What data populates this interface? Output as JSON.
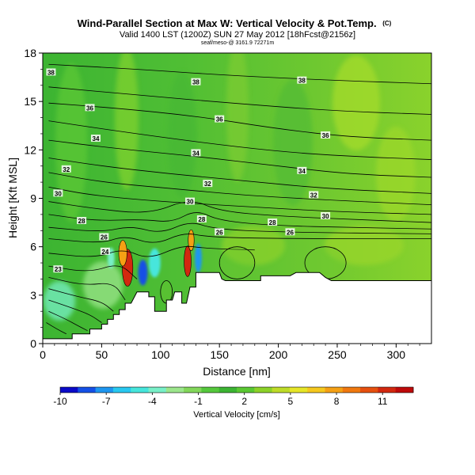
{
  "chart_data": {
    "type": "heatmap",
    "title": "Wind-Parallel Section at Max W: Vertical Velocity & Pot.Temp.",
    "title_mark": "(C)",
    "subtitle": "Valid 1400 LST (1200Z) SUN 27 May 2012 [18hFcst@2156z]",
    "subsubtitle": "seaf/meso-@ 3161.9 72271m",
    "xlabel": "Distance [nm]",
    "ylabel": "Height [Kft MSL]",
    "xlim": [
      0,
      330
    ],
    "ylim": [
      0,
      18
    ],
    "xticks": [
      0,
      50,
      100,
      150,
      200,
      250,
      300
    ],
    "yticks": [
      0,
      3,
      6,
      9,
      12,
      15,
      18
    ],
    "colorbar": {
      "label": "Vertical Velocity [cm/s]",
      "ticks": [
        -10,
        -7,
        -4,
        -1,
        2,
        5,
        8,
        11
      ],
      "range": [
        -10,
        13
      ],
      "colors": [
        "#0a0ac8",
        "#1450e6",
        "#1e96f0",
        "#28c8f0",
        "#46e6dc",
        "#78f0c8",
        "#9ce68c",
        "#82d75a",
        "#55c83c",
        "#3cb432",
        "#5ac832",
        "#8cd228",
        "#bedc28",
        "#e6e628",
        "#f5c81e",
        "#f5a014",
        "#f0780f",
        "#e6500f",
        "#d2280f",
        "#be0a0a"
      ]
    },
    "terrain": [
      [
        0,
        0.3
      ],
      [
        5,
        0.3
      ],
      [
        15,
        0.3
      ],
      [
        20,
        0.3
      ],
      [
        25,
        0.3
      ],
      [
        25,
        0.6
      ],
      [
        35,
        0.6
      ],
      [
        40,
        0.6
      ],
      [
        40,
        0.9
      ],
      [
        50,
        0.9
      ],
      [
        50,
        1.2
      ],
      [
        55,
        1.2
      ],
      [
        55,
        1.5
      ],
      [
        60,
        1.5
      ],
      [
        60,
        1.8
      ],
      [
        65,
        1.8
      ],
      [
        65,
        2.1
      ],
      [
        70,
        2.1
      ],
      [
        70,
        2.5
      ],
      [
        75,
        2.5
      ],
      [
        80,
        3.2
      ],
      [
        90,
        3.2
      ],
      [
        90,
        2.9
      ],
      [
        95,
        2.9
      ],
      [
        95,
        2.0
      ],
      [
        105,
        2.0
      ],
      [
        105,
        2.7
      ],
      [
        110,
        2.7
      ],
      [
        112,
        3.2
      ],
      [
        118,
        3.2
      ],
      [
        118,
        2.5
      ],
      [
        122,
        2.5
      ],
      [
        125,
        3.5
      ],
      [
        130,
        3.5
      ],
      [
        130,
        4.4
      ],
      [
        140,
        4.4
      ],
      [
        145,
        4.4
      ],
      [
        150,
        4.4
      ],
      [
        152,
        4.0
      ],
      [
        155,
        3.9
      ],
      [
        185,
        3.9
      ],
      [
        185,
        4.2
      ],
      [
        190,
        4.2
      ],
      [
        210,
        4.2
      ],
      [
        215,
        4.4
      ],
      [
        235,
        4.4
      ],
      [
        240,
        4.1
      ],
      [
        245,
        3.9
      ],
      [
        330,
        3.9
      ]
    ],
    "updrafts": [
      {
        "x": 72,
        "y": 4.7,
        "w": 9,
        "h": 2.3,
        "color": "#d2280f"
      },
      {
        "x": 68,
        "y": 5.6,
        "w": 7,
        "h": 1.6,
        "color": "#f5a014"
      },
      {
        "x": 123,
        "y": 5.1,
        "w": 6,
        "h": 1.9,
        "color": "#d2280f"
      },
      {
        "x": 126,
        "y": 6.4,
        "w": 5,
        "h": 1.3,
        "color": "#f5a014"
      }
    ],
    "downdrafts": [
      {
        "x": 85,
        "y": 4.4,
        "w": 8,
        "h": 1.6,
        "color": "#1450e6"
      },
      {
        "x": 95,
        "y": 5.0,
        "w": 10,
        "h": 1.8,
        "color": "#46e6dc"
      },
      {
        "x": 132,
        "y": 5.3,
        "w": 6,
        "h": 1.8,
        "color": "#1e96f0"
      },
      {
        "x": 58,
        "y": 5.3,
        "w": 6,
        "h": 1.3,
        "color": "#78f0c8"
      }
    ],
    "contour_labels": [
      {
        "text": "38",
        "x": 7,
        "y": 16.8
      },
      {
        "text": "38",
        "x": 130,
        "y": 16.2
      },
      {
        "text": "38",
        "x": 220,
        "y": 16.3
      },
      {
        "text": "36",
        "x": 40,
        "y": 14.6
      },
      {
        "text": "36",
        "x": 150,
        "y": 13.9
      },
      {
        "text": "36",
        "x": 240,
        "y": 12.9
      },
      {
        "text": "34",
        "x": 45,
        "y": 12.7
      },
      {
        "text": "34",
        "x": 130,
        "y": 11.8
      },
      {
        "text": "34",
        "x": 220,
        "y": 10.7
      },
      {
        "text": "32",
        "x": 20,
        "y": 10.8
      },
      {
        "text": "32",
        "x": 140,
        "y": 9.9
      },
      {
        "text": "32",
        "x": 230,
        "y": 9.2
      },
      {
        "text": "30",
        "x": 13,
        "y": 9.3
      },
      {
        "text": "30",
        "x": 125,
        "y": 8.8
      },
      {
        "text": "30",
        "x": 240,
        "y": 7.9
      },
      {
        "text": "28",
        "x": 33,
        "y": 7.6
      },
      {
        "text": "28",
        "x": 135,
        "y": 7.7
      },
      {
        "text": "28",
        "x": 195,
        "y": 7.5
      },
      {
        "text": "26",
        "x": 52,
        "y": 6.6
      },
      {
        "text": "26",
        "x": 150,
        "y": 6.9
      },
      {
        "text": "26",
        "x": 210,
        "y": 6.9
      },
      {
        "text": "24",
        "x": 53,
        "y": 5.7
      },
      {
        "text": "23",
        "x": 13,
        "y": 4.6
      }
    ],
    "isentropes": [
      [
        [
          5,
          17.3
        ],
        [
          80,
          17.0
        ],
        [
          160,
          16.6
        ],
        [
          250,
          16.3
        ],
        [
          330,
          16.1
        ]
      ],
      [
        [
          5,
          15.9
        ],
        [
          80,
          15.4
        ],
        [
          160,
          14.9
        ],
        [
          250,
          14.4
        ],
        [
          330,
          14.2
        ]
      ],
      [
        [
          5,
          14.9
        ],
        [
          60,
          14.6
        ],
        [
          130,
          14.1
        ],
        [
          200,
          13.3
        ],
        [
          260,
          12.8
        ],
        [
          330,
          12.6
        ]
      ],
      [
        [
          5,
          13.8
        ],
        [
          60,
          13.2
        ],
        [
          130,
          12.5
        ],
        [
          200,
          11.9
        ],
        [
          260,
          11.6
        ],
        [
          330,
          11.4
        ]
      ],
      [
        [
          5,
          12.6
        ],
        [
          60,
          12.1
        ],
        [
          130,
          11.6
        ],
        [
          200,
          11.0
        ],
        [
          260,
          10.5
        ],
        [
          330,
          10.3
        ]
      ],
      [
        [
          5,
          11.5
        ],
        [
          50,
          11.0
        ],
        [
          110,
          10.5
        ],
        [
          170,
          10.1
        ],
        [
          240,
          9.6
        ],
        [
          330,
          9.3
        ]
      ],
      [
        [
          5,
          10.6
        ],
        [
          50,
          10.0
        ],
        [
          110,
          9.6
        ],
        [
          170,
          9.2
        ],
        [
          240,
          8.9
        ],
        [
          330,
          8.6
        ]
      ],
      [
        [
          5,
          9.7
        ],
        [
          40,
          9.2
        ],
        [
          100,
          8.8
        ],
        [
          170,
          8.5
        ],
        [
          240,
          8.2
        ],
        [
          330,
          8.0
        ]
      ],
      [
        [
          5,
          8.8
        ],
        [
          40,
          8.4
        ],
        [
          90,
          8.0
        ],
        [
          125,
          9.0
        ],
        [
          150,
          8.2
        ],
        [
          200,
          7.9
        ],
        [
          260,
          7.7
        ],
        [
          330,
          7.5
        ]
      ],
      [
        [
          5,
          8.0
        ],
        [
          45,
          7.6
        ],
        [
          85,
          7.7
        ],
        [
          110,
          7.5
        ],
        [
          130,
          8.3
        ],
        [
          150,
          7.6
        ],
        [
          200,
          7.3
        ],
        [
          260,
          7.2
        ],
        [
          330,
          7.1
        ]
      ],
      [
        [
          5,
          7.2
        ],
        [
          50,
          6.9
        ],
        [
          75,
          7.3
        ],
        [
          100,
          6.8
        ],
        [
          125,
          7.6
        ],
        [
          145,
          7.1
        ],
        [
          200,
          6.9
        ],
        [
          330,
          6.8
        ]
      ],
      [
        [
          5,
          6.5
        ],
        [
          50,
          6.2
        ],
        [
          70,
          6.7
        ],
        [
          95,
          6.1
        ],
        [
          120,
          6.9
        ],
        [
          140,
          6.6
        ],
        [
          200,
          6.5
        ],
        [
          330,
          6.5
        ]
      ],
      [
        [
          5,
          5.6
        ],
        [
          45,
          5.3
        ],
        [
          68,
          5.9
        ],
        [
          90,
          5.2
        ],
        [
          118,
          6.1
        ],
        [
          138,
          5.9
        ],
        [
          180,
          5.8
        ]
      ],
      [
        [
          5,
          4.8
        ],
        [
          40,
          4.4
        ],
        [
          65,
          5.0
        ],
        [
          80,
          4.0
        ]
      ],
      [
        [
          5,
          4.1
        ],
        [
          35,
          3.6
        ],
        [
          60,
          3.8
        ],
        [
          70,
          2.7
        ]
      ],
      [
        [
          5,
          3.4
        ],
        [
          30,
          2.9
        ],
        [
          50,
          2.6
        ],
        [
          60,
          2.0
        ]
      ],
      [
        [
          5,
          2.7
        ],
        [
          25,
          2.2
        ],
        [
          40,
          1.8
        ],
        [
          50,
          1.3
        ]
      ],
      [
        [
          5,
          2.0
        ],
        [
          20,
          1.5
        ],
        [
          30,
          1.1
        ],
        [
          38,
          0.8
        ]
      ],
      [
        [
          3,
          1.3
        ],
        [
          12,
          0.9
        ],
        [
          20,
          0.6
        ]
      ]
    ],
    "bubbles": [
      {
        "x": 105,
        "y": 3.2,
        "w": 10,
        "h": 1.4
      },
      {
        "x": 165,
        "y": 5.0,
        "w": 30,
        "h": 2.0
      },
      {
        "x": 240,
        "y": 5.0,
        "w": 35,
        "h": 2.0
      }
    ]
  }
}
